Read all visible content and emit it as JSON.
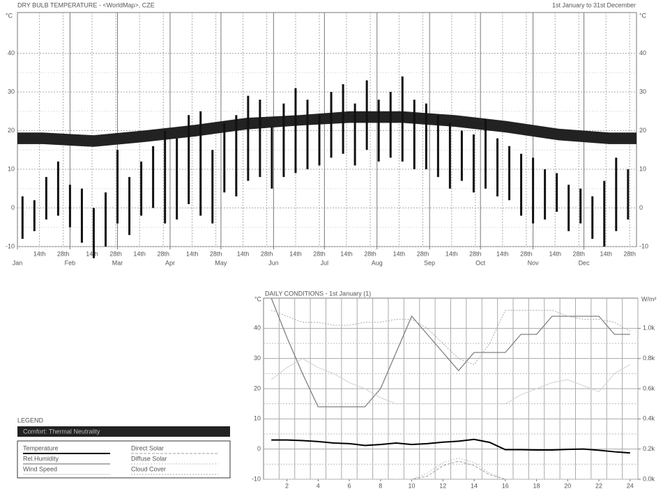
{
  "chart_data": [
    {
      "type": "hilo",
      "title": "DRY BULB TEMPERATURE - <WorldMap>, CZE",
      "subtitle": "1st January to 31st December",
      "y_unit": "°C",
      "xlim": [
        1,
        366
      ],
      "ylim": [
        -10,
        50
      ],
      "yticks": [
        -10,
        0,
        10,
        20,
        30,
        40
      ],
      "color": "#111111",
      "month_ticks": [
        {
          "value": 1,
          "label": "Jan"
        },
        {
          "value": 32,
          "label": "Feb"
        },
        {
          "value": 60,
          "label": "Mar"
        },
        {
          "value": 91,
          "label": "Apr"
        },
        {
          "value": 121,
          "label": "May"
        },
        {
          "value": 152,
          "label": "Jun"
        },
        {
          "value": 182,
          "label": "Jul"
        },
        {
          "value": 213,
          "label": "Aug"
        },
        {
          "value": 244,
          "label": "Sep"
        },
        {
          "value": 274,
          "label": "Oct"
        },
        {
          "value": 305,
          "label": "Nov"
        },
        {
          "value": 335,
          "label": "Dec"
        }
      ],
      "xticks": [
        {
          "value": 14,
          "label": "14th"
        },
        {
          "value": 28,
          "label": "28th"
        },
        {
          "value": 45,
          "label": "14th"
        },
        {
          "value": 59,
          "label": "28th"
        },
        {
          "value": 73,
          "label": "14th"
        },
        {
          "value": 87,
          "label": "28th"
        },
        {
          "value": 104,
          "label": "14th"
        },
        {
          "value": 118,
          "label": "28th"
        },
        {
          "value": 134,
          "label": "14th"
        },
        {
          "value": 148,
          "label": "28th"
        },
        {
          "value": 165,
          "label": "14th"
        },
        {
          "value": 179,
          "label": "28th"
        },
        {
          "value": 195,
          "label": "14th"
        },
        {
          "value": 209,
          "label": "28th"
        },
        {
          "value": 226,
          "label": "14th"
        },
        {
          "value": 240,
          "label": "28th"
        },
        {
          "value": 257,
          "label": "14th"
        },
        {
          "value": 271,
          "label": "28th"
        },
        {
          "value": 287,
          "label": "14th"
        },
        {
          "value": 301,
          "label": "28th"
        },
        {
          "value": 318,
          "label": "14th"
        },
        {
          "value": 332,
          "label": "28th"
        },
        {
          "value": 348,
          "label": "14th"
        },
        {
          "value": 362,
          "label": "28th"
        }
      ],
      "x": [
        4,
        11,
        18,
        25,
        32,
        39,
        46,
        53,
        60,
        67,
        74,
        81,
        88,
        95,
        102,
        109,
        116,
        123,
        130,
        137,
        144,
        151,
        158,
        165,
        172,
        179,
        186,
        193,
        200,
        207,
        214,
        221,
        228,
        235,
        242,
        249,
        256,
        263,
        270,
        277,
        284,
        291,
        298,
        305,
        312,
        319,
        326,
        333,
        340,
        347,
        354,
        361
      ],
      "high": [
        3,
        2,
        8,
        12,
        6,
        5,
        0,
        4,
        15,
        8,
        12,
        16,
        20,
        18,
        24,
        25,
        15,
        22,
        24,
        29,
        28,
        21,
        27,
        31,
        28,
        24,
        30,
        32,
        27,
        33,
        28,
        30,
        34,
        28,
        27,
        24,
        22,
        20,
        19,
        23,
        18,
        16,
        14,
        13,
        10,
        9,
        6,
        5,
        3,
        7,
        13,
        10
      ],
      "low": [
        -8,
        -6,
        -3,
        -2,
        -5,
        -9,
        -13,
        -10,
        -4,
        -7,
        -2,
        0,
        -4,
        -3,
        1,
        -2,
        -4,
        4,
        3,
        7,
        8,
        5,
        8,
        9,
        10,
        11,
        13,
        14,
        11,
        15,
        12,
        13,
        12,
        10,
        10,
        8,
        5,
        7,
        4,
        5,
        3,
        2,
        -2,
        -4,
        -3,
        -1,
        -6,
        -4,
        -8,
        -10,
        -6,
        -3
      ],
      "comfort": {
        "label": "Comfort: Thermal Neutrality",
        "color": "#222222",
        "x": [
          1,
          16,
          46,
          75,
          106,
          136,
          167,
          197,
          228,
          259,
          289,
          320,
          350,
          366
        ],
        "lower": [
          16.5,
          16.5,
          15.8,
          17,
          18.5,
          20.3,
          21.3,
          22,
          22,
          21,
          19.5,
          17.5,
          16.5,
          16.5
        ],
        "upper": [
          19.5,
          19.5,
          18.8,
          20,
          21.5,
          23.3,
          24,
          25,
          25,
          24,
          22.5,
          20.5,
          19.5,
          19.5
        ]
      }
    },
    {
      "type": "line",
      "title": "DAILY CONDITIONS - 1st January (1)",
      "y_unit": "°C",
      "y2_unit": "W/m²",
      "legend_title": "LEGEND",
      "xlim": [
        0.5,
        24.5
      ],
      "xticks": [
        2,
        4,
        6,
        8,
        10,
        12,
        14,
        16,
        18,
        20,
        22,
        24
      ],
      "ylim": [
        -10,
        50
      ],
      "yticks": [
        -10,
        0,
        10,
        20,
        30,
        40
      ],
      "y2lim": [
        0,
        1200
      ],
      "y2ticks": [
        {
          "value": 0,
          "label": "0.0k"
        },
        {
          "value": 200,
          "label": "0.2k"
        },
        {
          "value": 400,
          "label": "0.4k"
        },
        {
          "value": 600,
          "label": "0.6k"
        },
        {
          "value": 800,
          "label": "0.8k"
        },
        {
          "value": 1000,
          "label": "1.0k"
        }
      ],
      "x": [
        1,
        2,
        3,
        4,
        5,
        6,
        7,
        8,
        9,
        10,
        11,
        12,
        13,
        14,
        15,
        16,
        17,
        18,
        19,
        20,
        21,
        22,
        23,
        24
      ],
      "series": [
        {
          "name": "Temperature",
          "color": "#000000",
          "values": [
            3,
            3,
            2.8,
            2.5,
            2,
            1.8,
            1.2,
            1.5,
            2,
            1.5,
            1.8,
            2.3,
            2.6,
            3.2,
            2.2,
            -0.2,
            -0.2,
            -0.3,
            -0.3,
            -0.1,
            0,
            -0.4,
            -0.9,
            -1.3
          ]
        },
        {
          "name": "Rel.Humidity",
          "color": "#808080",
          "values": [
            50,
            37,
            25,
            14,
            14,
            14,
            14,
            20,
            32,
            44,
            38,
            32,
            26,
            32,
            32,
            32,
            38,
            38,
            44,
            44,
            44,
            44,
            38,
            38
          ]
        },
        {
          "name": "Wind Speed",
          "color": "#d0d0d0",
          "values": [
            23,
            27,
            30,
            27,
            25,
            22,
            20,
            17,
            15,
            15,
            15,
            15,
            15,
            15,
            15,
            15,
            18,
            20,
            22,
            23,
            21,
            19,
            25,
            28
          ]
        },
        {
          "name": "Direct Solar",
          "color": "#a0a0a0",
          "axis": "y2",
          "values": [
            0,
            0,
            0,
            0,
            0,
            0,
            0,
            0,
            0,
            0,
            20,
            90,
            120,
            90,
            30,
            0,
            0,
            0,
            0,
            0,
            0,
            0,
            0,
            0
          ]
        },
        {
          "name": "Diffuse Solar",
          "color": "#c0c0c0",
          "axis": "y2",
          "values": [
            0,
            0,
            0,
            0,
            0,
            0,
            0,
            0,
            0,
            0,
            40,
            110,
            140,
            110,
            40,
            0,
            0,
            0,
            0,
            0,
            0,
            0,
            0,
            0
          ]
        },
        {
          "name": "Cloud Cover",
          "color": "#a8a8a8",
          "values": [
            46,
            44,
            42,
            42,
            41,
            41,
            42,
            42,
            43,
            43,
            40,
            35,
            30,
            28,
            35,
            46,
            46,
            46,
            46,
            44,
            43,
            43,
            42,
            39
          ]
        }
      ]
    }
  ]
}
